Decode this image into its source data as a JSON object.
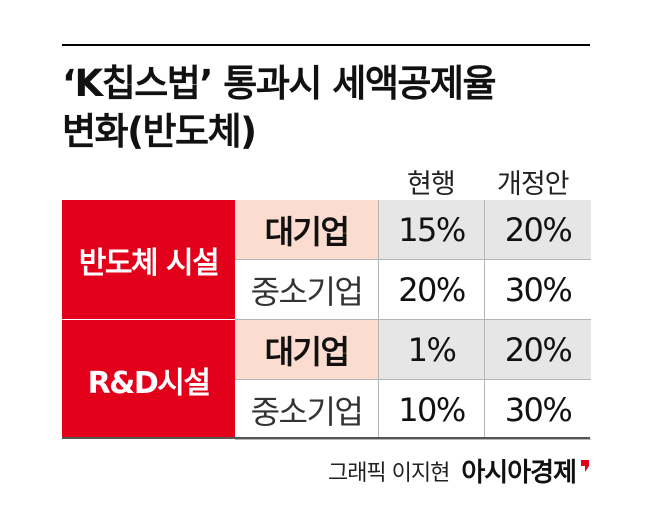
{
  "title": {
    "line1": "‘K칩스법’ 통과시 세액공제율",
    "line2": "변화(반도체)"
  },
  "columns": {
    "current": "현행",
    "revised": "개정안"
  },
  "credit": {
    "graphic": "그래픽 이지현",
    "brand": "아시아경제"
  },
  "colors": {
    "accent_red": "#e2001a",
    "highlight_peach": "#fbdccf",
    "highlight_grey": "#e6e6e6"
  },
  "chart_data": {
    "type": "table",
    "columns": [
      "현행",
      "개정안"
    ],
    "groups": [
      {
        "label": "반도체 시설",
        "rows": [
          {
            "size": "대기업",
            "current": "15%",
            "revised": "20%"
          },
          {
            "size": "중소기업",
            "current": "20%",
            "revised": "30%"
          }
        ]
      },
      {
        "label": "R&D시설",
        "rows": [
          {
            "size": "대기업",
            "current": "1%",
            "revised": "20%"
          },
          {
            "size": "중소기업",
            "current": "10%",
            "revised": "30%"
          }
        ]
      }
    ]
  }
}
